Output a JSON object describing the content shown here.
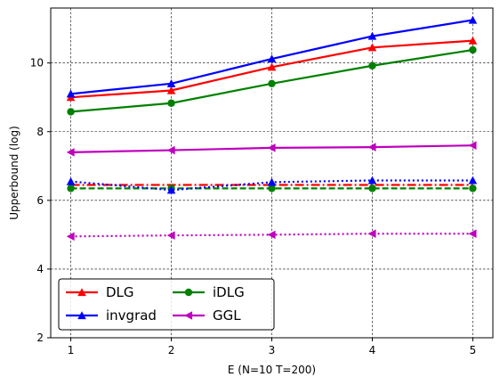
{
  "chart_data": {
    "type": "line",
    "xlabel": "E (N=10 T=200)",
    "ylabel": "Upperbound (log)",
    "xlim": [
      0.8,
      5.2
    ],
    "ylim": [
      2,
      11.6
    ],
    "xticks": [
      1,
      2,
      3,
      4,
      5
    ],
    "yticks": [
      2,
      4,
      6,
      8,
      10
    ],
    "grid": true,
    "legend": {
      "placement": "lower-left",
      "columns": 2,
      "entries": [
        "DLG",
        "iDLG",
        "invgrad",
        "GGL"
      ]
    },
    "x": [
      1,
      2,
      3,
      4,
      5
    ],
    "series": [
      {
        "name": "DLG",
        "color": "#ff0000",
        "marker": "triangle-up",
        "linestyle": "solid",
        "values": [
          9.0,
          9.2,
          9.88,
          10.45,
          10.65
        ]
      },
      {
        "name": "iDLG",
        "color": "#008000",
        "marker": "circle",
        "linestyle": "solid",
        "values": [
          8.58,
          8.83,
          9.4,
          9.92,
          10.38
        ]
      },
      {
        "name": "invgrad",
        "color": "#0000ff",
        "marker": "triangle-up",
        "linestyle": "solid",
        "values": [
          9.1,
          9.4,
          10.12,
          10.78,
          11.25
        ]
      },
      {
        "name": "GGL",
        "color": "#bf00bf",
        "marker": "triangle-left",
        "linestyle": "solid",
        "values": [
          7.4,
          7.46,
          7.53,
          7.55,
          7.6
        ]
      },
      {
        "color": "#ff0000",
        "marker": "none",
        "linestyle": "dashdot",
        "values": [
          6.45,
          6.45,
          6.45,
          6.45,
          6.45
        ]
      },
      {
        "color": "#008000",
        "marker": "circle",
        "linestyle": "dashed",
        "values": [
          6.35,
          6.35,
          6.35,
          6.35,
          6.35
        ]
      },
      {
        "color": "#0000ff",
        "marker": "triangle-up",
        "linestyle": "dotted",
        "values": [
          6.55,
          6.3,
          6.53,
          6.58,
          6.58
        ]
      },
      {
        "color": "#bf00bf",
        "marker": "triangle-left",
        "linestyle": "dotted",
        "values": [
          4.95,
          4.98,
          5.0,
          5.03,
          5.03
        ]
      }
    ]
  }
}
